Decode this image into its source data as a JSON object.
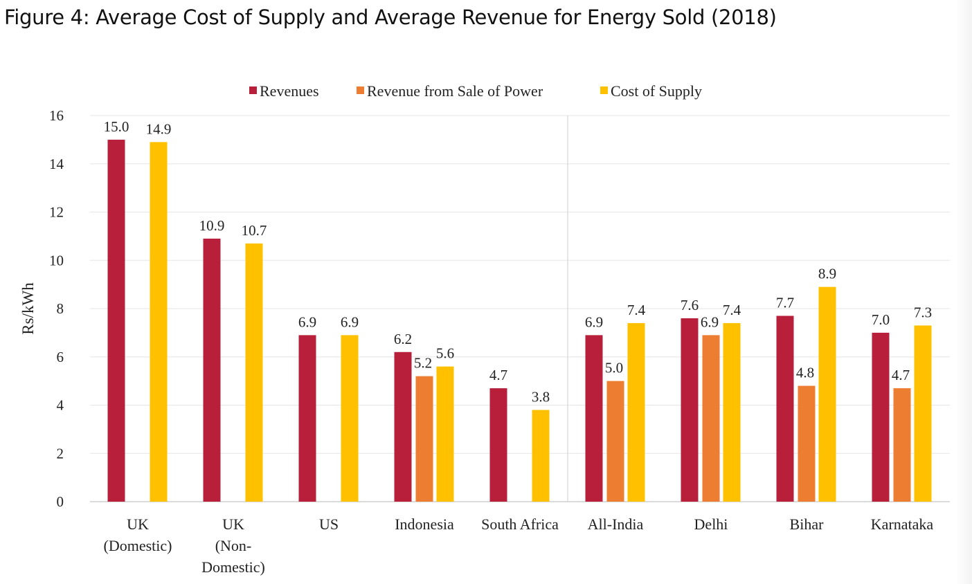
{
  "title": "Figure 4: Average Cost of Supply and Average Revenue for Energy Sold (2018)",
  "chart_data": {
    "type": "bar",
    "title": "Figure 4: Average Cost of Supply and Average Revenue for Energy Sold (2018)",
    "xlabel": "",
    "ylabel": "Rs/kWh",
    "ylim": [
      0,
      16
    ],
    "yticks": [
      0,
      2,
      4,
      6,
      8,
      10,
      12,
      14,
      16
    ],
    "grid": true,
    "legend_position": "top-center",
    "categories": [
      [
        "UK",
        "(Domestic)"
      ],
      [
        "UK",
        "(Non-",
        "Domestic)"
      ],
      [
        "US"
      ],
      [
        "Indonesia"
      ],
      [
        "South Africa"
      ],
      [
        "All-India"
      ],
      [
        "Delhi"
      ],
      [
        "Bihar"
      ],
      [
        "Karnataka"
      ]
    ],
    "series": [
      {
        "name": "Revenues",
        "color": "#B81F3B",
        "values": [
          15.0,
          10.9,
          6.9,
          6.2,
          4.7,
          6.9,
          7.6,
          7.7,
          7.0
        ]
      },
      {
        "name": "Revenue from Sale of Power",
        "color": "#ED7D31",
        "values": [
          null,
          null,
          null,
          5.2,
          null,
          5.0,
          6.9,
          4.8,
          4.7
        ]
      },
      {
        "name": "Cost of Supply",
        "color": "#FFC000",
        "values": [
          14.9,
          10.7,
          6.9,
          5.6,
          3.8,
          7.4,
          7.4,
          8.9,
          7.3
        ]
      }
    ],
    "separator_after_category": 4
  }
}
